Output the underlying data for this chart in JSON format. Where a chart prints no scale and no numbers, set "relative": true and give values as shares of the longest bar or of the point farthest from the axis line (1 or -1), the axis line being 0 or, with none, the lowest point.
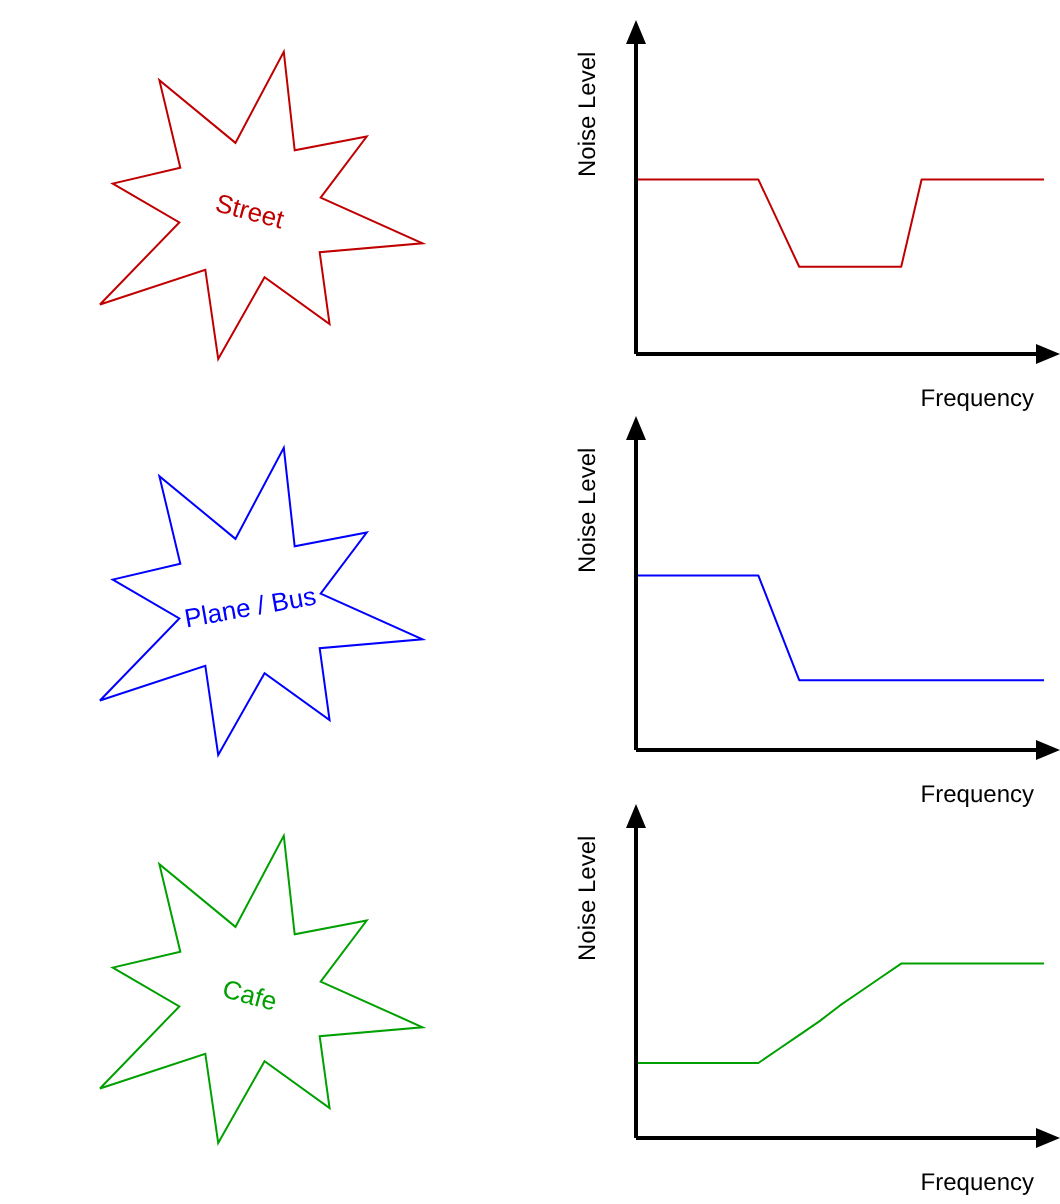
{
  "chart_data": [
    {
      "type": "line",
      "relative": true,
      "xlabel": "Frequency",
      "ylabel": "Noise Level",
      "annotations": [
        "Street"
      ],
      "categories": [
        null,
        null,
        null,
        null,
        null,
        null,
        null,
        null,
        null,
        null,
        null,
        null,
        null,
        null,
        null,
        null,
        null,
        null,
        null,
        null,
        null
      ],
      "series": [
        {
          "color": "#c00000",
          "values": [
            1,
            1,
            1,
            1,
            1,
            1,
            1,
            0.75,
            0.5,
            0.5,
            0.5,
            0.5,
            0.5,
            0.5,
            1,
            1,
            1,
            1,
            1,
            1,
            1
          ]
        }
      ]
    },
    {
      "type": "line",
      "relative": true,
      "xlabel": "Frequency",
      "ylabel": "Noise Level",
      "annotations": [
        "Plane / Bus"
      ],
      "categories": [
        null,
        null,
        null,
        null,
        null,
        null,
        null,
        null,
        null,
        null,
        null,
        null,
        null,
        null,
        null,
        null,
        null,
        null,
        null,
        null,
        null
      ],
      "series": [
        {
          "color": "#0000ff",
          "values": [
            1,
            1,
            1,
            1,
            1,
            1,
            1,
            0.7,
            0.4,
            0.4,
            0.4,
            0.4,
            0.4,
            0.4,
            0.4,
            0.4,
            0.4,
            0.4,
            0.4,
            0.4,
            0.4
          ]
        }
      ]
    },
    {
      "type": "line",
      "relative": true,
      "xlabel": "Frequency",
      "ylabel": "Noise Level",
      "annotations": [
        "Cafe"
      ],
      "categories": [
        null,
        null,
        null,
        null,
        null,
        null,
        null,
        null,
        null,
        null,
        null,
        null,
        null,
        null,
        null,
        null,
        null,
        null,
        null,
        null,
        null
      ],
      "series": [
        {
          "color": "#00a000",
          "values": [
            0.43,
            0.43,
            0.43,
            0.43,
            0.43,
            0.43,
            0.43,
            0.51,
            0.59,
            0.67,
            0.76,
            0.84,
            0.92,
            1,
            1,
            1,
            1,
            1,
            1,
            1,
            1
          ]
        }
      ]
    }
  ]
}
